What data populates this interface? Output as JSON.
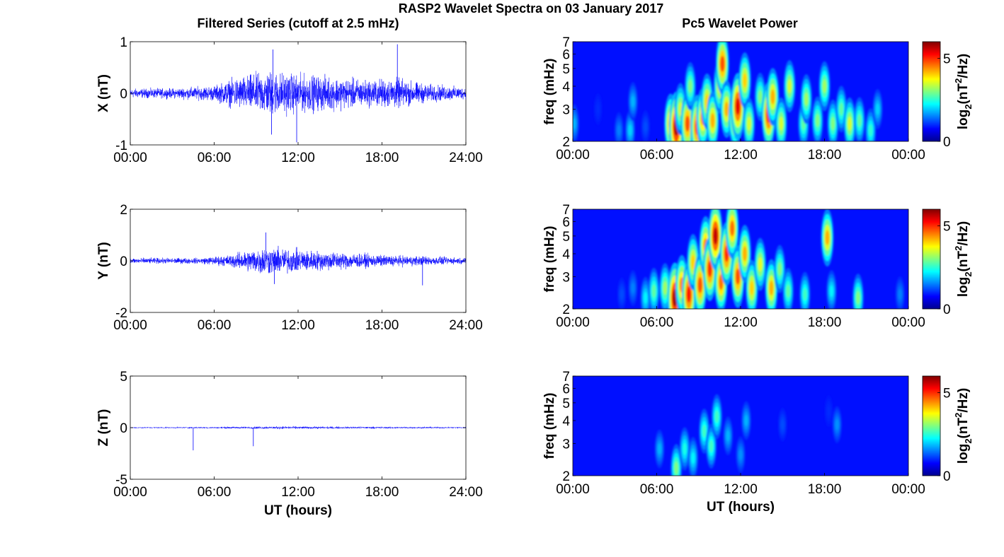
{
  "figure": {
    "title": "RASP2 Wavelet Spectra on 03 January 2017",
    "left_title": "Filtered Series (cutoff at 2.5 mHz)",
    "right_title": "Pc5 Wavelet Power"
  },
  "chart_data": [
    {
      "type": "line",
      "ylabel": "X (nT)",
      "xlabel": "",
      "xlim": [
        0,
        24
      ],
      "ylim": [
        -1,
        1
      ],
      "x_ticks": [
        "00:00",
        "06:00",
        "12:00",
        "18:00",
        "24:00"
      ],
      "y_ticks": [
        "-1",
        "0",
        "1"
      ],
      "series": [
        {
          "color": "#0000ff"
        }
      ],
      "noise_envelope": [
        {
          "t": 0,
          "amp": 0.12
        },
        {
          "t": 3,
          "amp": 0.13
        },
        {
          "t": 6,
          "amp": 0.2
        },
        {
          "t": 7.5,
          "amp": 0.4
        },
        {
          "t": 10,
          "amp": 0.6
        },
        {
          "t": 12,
          "amp": 0.5
        },
        {
          "t": 14,
          "amp": 0.45
        },
        {
          "t": 17,
          "amp": 0.35
        },
        {
          "t": 19,
          "amp": 0.4
        },
        {
          "t": 21,
          "amp": 0.25
        },
        {
          "t": 24,
          "amp": 0.15
        }
      ],
      "peaks": [
        {
          "t": 10.2,
          "v": 0.85
        },
        {
          "t": 19.1,
          "v": 0.95
        },
        {
          "t": 11.9,
          "v": -0.95
        },
        {
          "t": 10.1,
          "v": -0.8
        }
      ]
    },
    {
      "type": "line",
      "ylabel": "Y (nT)",
      "xlabel": "",
      "xlim": [
        0,
        24
      ],
      "ylim": [
        -2,
        2
      ],
      "x_ticks": [
        "00:00",
        "06:00",
        "12:00",
        "18:00",
        "24:00"
      ],
      "y_ticks": [
        "-2",
        "0",
        "2"
      ],
      "series": [
        {
          "color": "#0000ff"
        }
      ],
      "noise_envelope": [
        {
          "t": 0,
          "amp": 0.15
        },
        {
          "t": 5,
          "amp": 0.15
        },
        {
          "t": 7,
          "amp": 0.3
        },
        {
          "t": 9.5,
          "amp": 0.75
        },
        {
          "t": 12,
          "amp": 0.6
        },
        {
          "t": 15,
          "amp": 0.45
        },
        {
          "t": 18,
          "amp": 0.3
        },
        {
          "t": 21,
          "amp": 0.25
        },
        {
          "t": 24,
          "amp": 0.15
        }
      ],
      "peaks": [
        {
          "t": 9.7,
          "v": 1.1
        },
        {
          "t": 20.9,
          "v": -0.95
        },
        {
          "t": 10.3,
          "v": -0.9
        }
      ]
    },
    {
      "type": "line",
      "ylabel": "Z (nT)",
      "xlabel": "UT (hours)",
      "xlim": [
        0,
        24
      ],
      "ylim": [
        -5,
        5
      ],
      "x_ticks": [
        "00:00",
        "06:00",
        "12:00",
        "18:00",
        "24:00"
      ],
      "y_ticks": [
        "-5",
        "0",
        "5"
      ],
      "series": [
        {
          "color": "#0000ff"
        }
      ],
      "noise_envelope": [
        {
          "t": 0,
          "amp": 0.08
        },
        {
          "t": 6,
          "amp": 0.1
        },
        {
          "t": 10,
          "amp": 0.18
        },
        {
          "t": 14,
          "amp": 0.15
        },
        {
          "t": 24,
          "amp": 0.1
        }
      ],
      "peaks": [
        {
          "t": 4.5,
          "v": -2.2
        },
        {
          "t": 8.8,
          "v": -1.8
        }
      ]
    },
    {
      "type": "heatmap",
      "ylabel": "freq (mHz)",
      "xlabel": "",
      "xlim": [
        0,
        24
      ],
      "ylim": [
        2,
        7
      ],
      "y_scale": "log",
      "x_ticks": [
        "00:00",
        "06:00",
        "12:00",
        "18:00",
        "00:00"
      ],
      "y_ticks": [
        "2",
        "3",
        "4",
        "5",
        "6",
        "7"
      ],
      "colorbar": {
        "label": "log2(nT2/Hz)",
        "label_main": "log",
        "label_sub": "2",
        "label_paren": "(nT",
        "label_sup": "2",
        "label_end": "/Hz)",
        "ticks": [
          "0",
          "5"
        ],
        "range": [
          0,
          6
        ],
        "colormap": "jet"
      },
      "blobs": [
        {
          "t": 0.1,
          "f": 2.5,
          "p": 1.8
        },
        {
          "t": 1.8,
          "f": 3.0,
          "p": 1.0
        },
        {
          "t": 3.3,
          "f": 2.3,
          "p": 1.5
        },
        {
          "t": 4.1,
          "f": 2.3,
          "p": 2.0
        },
        {
          "t": 4.3,
          "f": 3.3,
          "p": 1.8
        },
        {
          "t": 5.2,
          "f": 2.4,
          "p": 1.2
        },
        {
          "t": 7.0,
          "f": 2.5,
          "p": 4.5
        },
        {
          "t": 7.4,
          "f": 2.4,
          "p": 5.8
        },
        {
          "t": 7.7,
          "f": 3.0,
          "p": 3.5
        },
        {
          "t": 8.2,
          "f": 2.5,
          "p": 4.8
        },
        {
          "t": 8.4,
          "f": 4.0,
          "p": 3.0
        },
        {
          "t": 8.9,
          "f": 2.4,
          "p": 5.0
        },
        {
          "t": 9.3,
          "f": 2.7,
          "p": 4.5
        },
        {
          "t": 9.6,
          "f": 3.3,
          "p": 4.0
        },
        {
          "t": 10.0,
          "f": 2.6,
          "p": 4.2
        },
        {
          "t": 10.5,
          "f": 4.0,
          "p": 3.8
        },
        {
          "t": 10.7,
          "f": 5.3,
          "p": 4.8
        },
        {
          "t": 11.0,
          "f": 3.0,
          "p": 4.2
        },
        {
          "t": 11.6,
          "f": 2.7,
          "p": 4.5
        },
        {
          "t": 11.8,
          "f": 3.1,
          "p": 5.4
        },
        {
          "t": 12.3,
          "f": 4.3,
          "p": 4.0
        },
        {
          "t": 12.6,
          "f": 2.5,
          "p": 3.5
        },
        {
          "t": 13.4,
          "f": 3.5,
          "p": 3.0
        },
        {
          "t": 14.0,
          "f": 2.8,
          "p": 5.2
        },
        {
          "t": 14.3,
          "f": 3.5,
          "p": 4.2
        },
        {
          "t": 14.9,
          "f": 2.5,
          "p": 3.5
        },
        {
          "t": 15.5,
          "f": 4.0,
          "p": 3.5
        },
        {
          "t": 16.5,
          "f": 2.5,
          "p": 2.8
        },
        {
          "t": 16.7,
          "f": 3.4,
          "p": 3.2
        },
        {
          "t": 17.5,
          "f": 2.6,
          "p": 3.0
        },
        {
          "t": 18.0,
          "f": 4.0,
          "p": 3.2
        },
        {
          "t": 18.6,
          "f": 2.5,
          "p": 3.0
        },
        {
          "t": 19.2,
          "f": 3.0,
          "p": 2.8
        },
        {
          "t": 19.8,
          "f": 2.5,
          "p": 3.5
        },
        {
          "t": 20.5,
          "f": 2.6,
          "p": 2.8
        },
        {
          "t": 21.3,
          "f": 2.3,
          "p": 2.5
        },
        {
          "t": 21.8,
          "f": 3.0,
          "p": 2.0
        }
      ]
    },
    {
      "type": "heatmap",
      "ylabel": "freq (mHz)",
      "xlabel": "",
      "xlim": [
        0,
        24
      ],
      "ylim": [
        2,
        7
      ],
      "y_scale": "log",
      "x_ticks": [
        "00:00",
        "06:00",
        "12:00",
        "18:00",
        "00:00"
      ],
      "y_ticks": [
        "2",
        "3",
        "4",
        "5",
        "6",
        "7"
      ],
      "colorbar": {
        "label": "log2(nT2/Hz)",
        "label_main": "log",
        "label_sub": "2",
        "label_paren": "(nT",
        "label_sup": "2",
        "label_end": "/Hz)",
        "ticks": [
          "0",
          "5"
        ],
        "range": [
          0,
          6
        ],
        "colormap": "jet"
      },
      "blobs": [
        {
          "t": 3.5,
          "f": 2.4,
          "p": 1.2
        },
        {
          "t": 4.3,
          "f": 2.6,
          "p": 1.5
        },
        {
          "t": 5.2,
          "f": 2.3,
          "p": 2.2
        },
        {
          "t": 5.8,
          "f": 2.5,
          "p": 2.8
        },
        {
          "t": 6.6,
          "f": 2.6,
          "p": 3.2
        },
        {
          "t": 7.3,
          "f": 2.3,
          "p": 5.8
        },
        {
          "t": 7.8,
          "f": 2.7,
          "p": 4.5
        },
        {
          "t": 8.3,
          "f": 2.4,
          "p": 5.2
        },
        {
          "t": 8.6,
          "f": 3.6,
          "p": 4.0
        },
        {
          "t": 9.1,
          "f": 2.7,
          "p": 4.8
        },
        {
          "t": 9.5,
          "f": 4.4,
          "p": 4.5
        },
        {
          "t": 9.8,
          "f": 3.3,
          "p": 5.0
        },
        {
          "t": 10.2,
          "f": 5.0,
          "p": 5.6
        },
        {
          "t": 10.6,
          "f": 2.8,
          "p": 4.6
        },
        {
          "t": 11.0,
          "f": 4.0,
          "p": 5.0
        },
        {
          "t": 11.4,
          "f": 5.5,
          "p": 4.6
        },
        {
          "t": 11.8,
          "f": 3.0,
          "p": 4.8
        },
        {
          "t": 12.3,
          "f": 4.0,
          "p": 4.2
        },
        {
          "t": 12.8,
          "f": 2.6,
          "p": 4.0
        },
        {
          "t": 13.4,
          "f": 3.5,
          "p": 3.6
        },
        {
          "t": 14.2,
          "f": 2.6,
          "p": 4.2
        },
        {
          "t": 14.8,
          "f": 3.3,
          "p": 3.0
        },
        {
          "t": 15.4,
          "f": 2.5,
          "p": 2.8
        },
        {
          "t": 16.6,
          "f": 2.4,
          "p": 2.6
        },
        {
          "t": 18.2,
          "f": 4.9,
          "p": 4.2
        },
        {
          "t": 18.5,
          "f": 2.5,
          "p": 2.2
        },
        {
          "t": 20.4,
          "f": 2.3,
          "p": 3.0
        },
        {
          "t": 23.4,
          "f": 2.4,
          "p": 1.5
        }
      ]
    },
    {
      "type": "heatmap",
      "ylabel": "freq (mHz)",
      "xlabel": "UT (hours)",
      "xlim": [
        0,
        24
      ],
      "ylim": [
        2,
        7
      ],
      "y_scale": "log",
      "x_ticks": [
        "00:00",
        "06:00",
        "12:00",
        "18:00",
        "00:00"
      ],
      "y_ticks": [
        "2",
        "3",
        "4",
        "5",
        "6",
        "7"
      ],
      "colorbar": {
        "label": "log2(nT2/Hz)",
        "label_main": "log",
        "label_sub": "2",
        "label_paren": "(nT",
        "label_sup": "2",
        "label_end": "/Hz)",
        "ticks": [
          "0",
          "5"
        ],
        "range": [
          0,
          6
        ],
        "colormap": "jet"
      },
      "blobs": [
        {
          "t": 6.2,
          "f": 2.8,
          "p": 1.8
        },
        {
          "t": 7.4,
          "f": 2.2,
          "p": 3.0
        },
        {
          "t": 8.0,
          "f": 2.8,
          "p": 2.4
        },
        {
          "t": 8.6,
          "f": 2.5,
          "p": 2.2
        },
        {
          "t": 9.4,
          "f": 3.5,
          "p": 2.6
        },
        {
          "t": 9.9,
          "f": 2.9,
          "p": 2.6
        },
        {
          "t": 10.3,
          "f": 4.2,
          "p": 2.6
        },
        {
          "t": 11.1,
          "f": 3.3,
          "p": 1.8
        },
        {
          "t": 12.0,
          "f": 2.6,
          "p": 1.6
        },
        {
          "t": 12.4,
          "f": 4.0,
          "p": 1.8
        },
        {
          "t": 15.0,
          "f": 3.8,
          "p": 1.2
        },
        {
          "t": 18.9,
          "f": 3.8,
          "p": 1.6
        },
        {
          "t": 18.3,
          "f": 4.5,
          "p": 1.0
        }
      ]
    }
  ]
}
